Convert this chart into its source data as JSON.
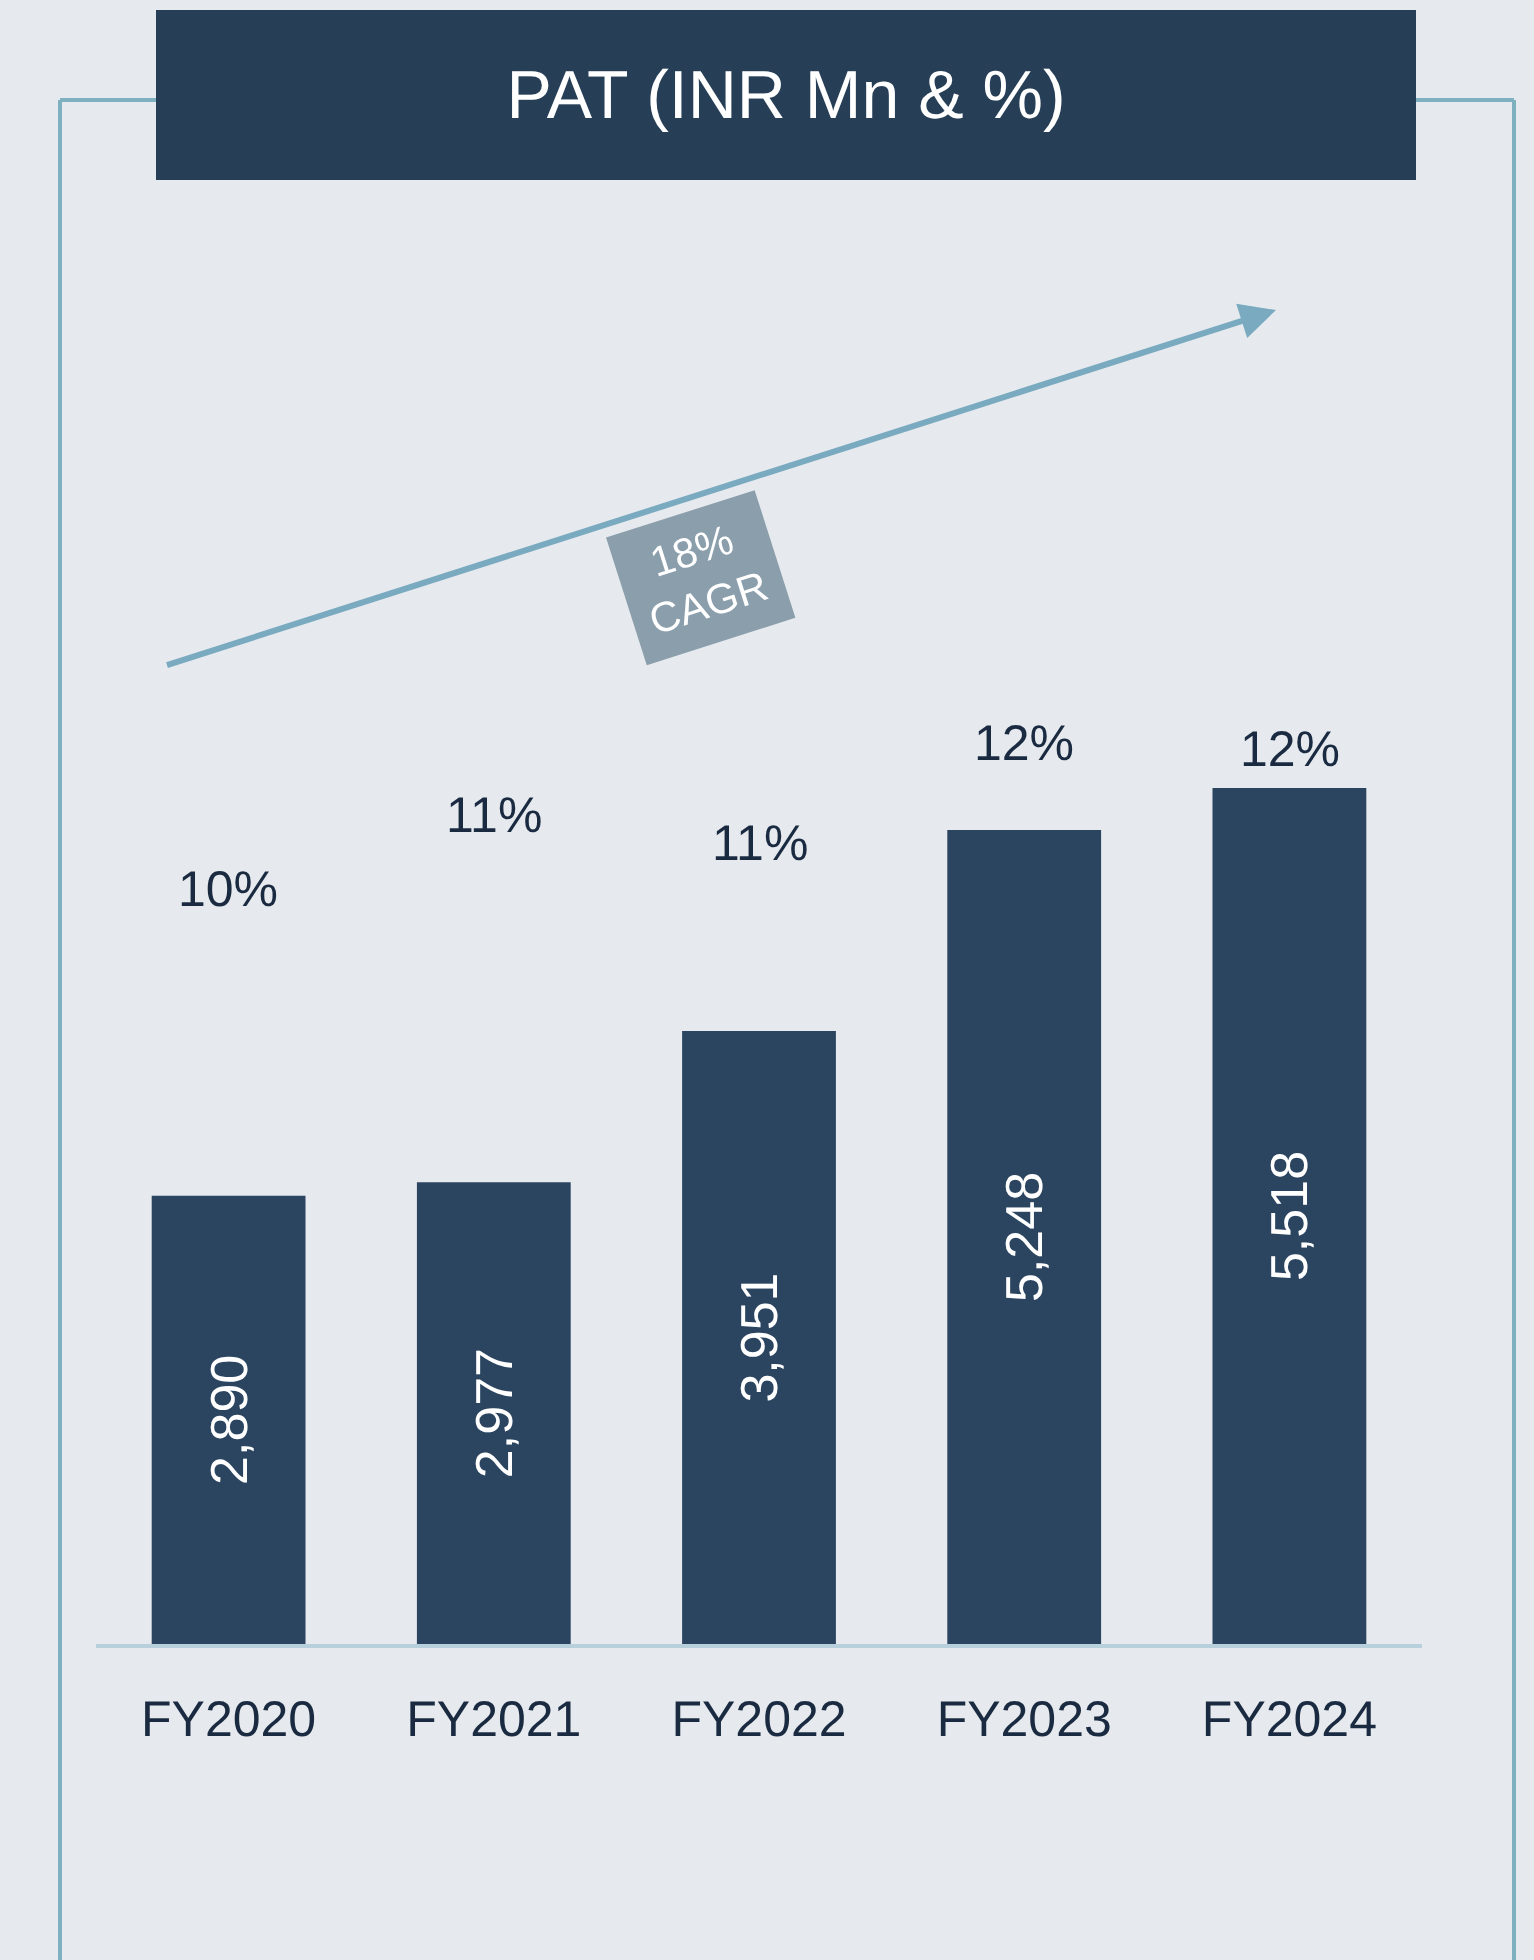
{
  "chart_data": {
    "type": "bar",
    "title": "PAT (INR Mn & %)",
    "categories": [
      "FY2020",
      "FY2021",
      "FY2022",
      "FY2023",
      "FY2024"
    ],
    "values": [
      2890,
      2977,
      3951,
      5248,
      5518
    ],
    "value_labels": [
      "2,890",
      "2,977",
      "3,951",
      "5,248",
      "5,518"
    ],
    "color": "#2b4560",
    "tick_labels": "x",
    "grid": false,
    "annotations": [
      "10%",
      "11%",
      "11%",
      "12%",
      "12%",
      "18%\nCAGR"
    ]
  }
}
